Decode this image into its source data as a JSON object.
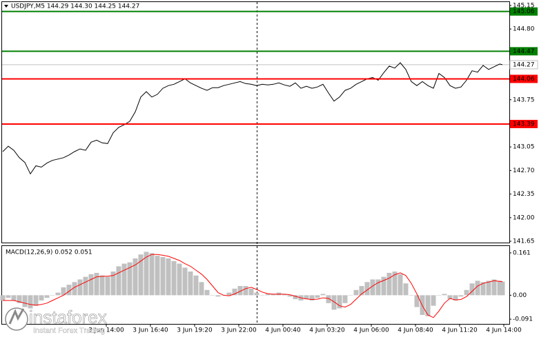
{
  "watermark": {
    "brand": "instaforex",
    "tagline": "Instant Forex Trading"
  },
  "chart_data": [
    {
      "type": "line",
      "title": "USDJPY,M5  144.29 144.30 144.25 144.27",
      "x": [
        0,
        4,
        8,
        12,
        16,
        20,
        24,
        28,
        32,
        36,
        40,
        44,
        48,
        52,
        56,
        60,
        64,
        68,
        72,
        76,
        80,
        84,
        88,
        92,
        96,
        100,
        104,
        108,
        112,
        116,
        120,
        124,
        128,
        132,
        136,
        140,
        144,
        148,
        152,
        156,
        160,
        164,
        168,
        172,
        176,
        180,
        184,
        188,
        192,
        196,
        200,
        204,
        208,
        212,
        216,
        220,
        224,
        228,
        232,
        236,
        240,
        244,
        248,
        252,
        256,
        260,
        264,
        268,
        272,
        276,
        280,
        284,
        288,
        292,
        296,
        300,
        304,
        308,
        312,
        316,
        320,
        324,
        328,
        332,
        336,
        340,
        344,
        348,
        352,
        356,
        360,
        362
      ],
      "series": [
        {
          "color": "#000000",
          "values": [
            142.98,
            143.06,
            143.0,
            142.89,
            142.82,
            142.65,
            142.77,
            142.75,
            142.81,
            142.85,
            142.87,
            142.89,
            142.93,
            142.98,
            143.02,
            143.0,
            143.12,
            143.15,
            143.11,
            143.1,
            143.26,
            143.34,
            143.38,
            143.43,
            143.57,
            143.79,
            143.87,
            143.79,
            143.83,
            143.92,
            143.96,
            143.98,
            144.02,
            144.06,
            144.0,
            143.96,
            143.92,
            143.89,
            143.93,
            143.93,
            143.96,
            143.98,
            144.0,
            144.02,
            143.99,
            143.98,
            143.96,
            143.98,
            143.97,
            143.98,
            144.0,
            143.97,
            143.95,
            144.0,
            143.92,
            143.95,
            143.92,
            143.94,
            143.98,
            143.85,
            143.73,
            143.79,
            143.89,
            143.92,
            143.98,
            144.02,
            144.06,
            144.08,
            144.04,
            144.15,
            144.25,
            144.22,
            144.3,
            144.2,
            144.02,
            143.96,
            144.02,
            143.96,
            143.92,
            144.14,
            144.08,
            143.96,
            143.92,
            143.94,
            144.04,
            144.18,
            144.16,
            144.26,
            144.2,
            144.24,
            144.28,
            144.27
          ]
        }
      ],
      "xlim": [
        -1,
        367
      ],
      "ylim": [
        141.63,
        145.2
      ],
      "yticks": [
        145.15,
        {
          "value": 144.8,
          "label": "144.80"
        },
        143.75,
        143.05,
        {
          "value": 142.7,
          "label": "142.70"
        },
        142.35,
        {
          "value": 142,
          "label": "142.00"
        },
        141.65
      ],
      "levels": [
        {
          "value": 145.06,
          "color": "#008000",
          "label_text_color": "#000000"
        },
        {
          "value": 144.47,
          "color": "#008000",
          "label_text_color": "#000000"
        },
        {
          "value": 144.06,
          "color": "#ff0000",
          "label_text_color": "#ffffff"
        },
        {
          "value": 143.39,
          "color": "#ff0000",
          "label_text_color": "#ffffff"
        }
      ],
      "current": {
        "value": 144.27,
        "color": "#c0c0c0"
      }
    },
    {
      "type": "macd",
      "title": "MACD(12,26,9) 0.052 0.051",
      "x": [
        0,
        4,
        8,
        12,
        16,
        20,
        24,
        28,
        32,
        36,
        40,
        44,
        48,
        52,
        56,
        60,
        64,
        68,
        72,
        76,
        80,
        84,
        88,
        92,
        96,
        100,
        104,
        108,
        112,
        116,
        120,
        124,
        128,
        132,
        136,
        140,
        144,
        148,
        152,
        156,
        160,
        164,
        168,
        172,
        176,
        180,
        184,
        188,
        192,
        196,
        200,
        204,
        208,
        212,
        216,
        220,
        224,
        228,
        232,
        236,
        240,
        244,
        248,
        252,
        256,
        260,
        264,
        268,
        272,
        276,
        280,
        284,
        288,
        292,
        296,
        300,
        304,
        308,
        312,
        316,
        320,
        324,
        328,
        332,
        336,
        340,
        344,
        348,
        352,
        356,
        360,
        362
      ],
      "series": [
        {
          "kind": "bar",
          "color": "#c0c0c0",
          "values": [
            -0.02,
            -0.01,
            -0.02,
            -0.03,
            -0.045,
            -0.05,
            -0.04,
            -0.02,
            -0.01,
            0,
            0.01,
            0.03,
            0.04,
            0.05,
            0.06,
            0.07,
            0.08,
            0.085,
            0.075,
            0.07,
            0.09,
            0.11,
            0.12,
            0.125,
            0.14,
            0.155,
            0.165,
            0.16,
            0.15,
            0.145,
            0.14,
            0.13,
            0.12,
            0.105,
            0.09,
            0.075,
            0.05,
            0.02,
            0,
            -0.005,
            0,
            0.01,
            0.025,
            0.035,
            0.035,
            0.025,
            0.01,
            0,
            0.005,
            0.005,
            0.01,
            0.005,
            -0.005,
            -0.015,
            -0.02,
            -0.015,
            -0.02,
            -0.01,
            0.005,
            -0.03,
            -0.055,
            -0.05,
            -0.03,
            0,
            0.02,
            0.035,
            0.05,
            0.06,
            0.06,
            0.07,
            0.085,
            0.09,
            0.08,
            0.045,
            0,
            -0.045,
            -0.075,
            -0.08,
            -0.04,
            0,
            0.005,
            -0.015,
            -0.02,
            -0.005,
            0.02,
            0.045,
            0.055,
            0.05,
            0.055,
            0.06,
            0.055,
            0.052
          ]
        },
        {
          "kind": "line",
          "color": "#ff0000",
          "values": [
            -0.02,
            -0.02,
            -0.02,
            -0.025,
            -0.03,
            -0.035,
            -0.038,
            -0.035,
            -0.03,
            -0.02,
            -0.01,
            0,
            0.015,
            0.03,
            0.04,
            0.05,
            0.06,
            0.07,
            0.072,
            0.072,
            0.075,
            0.085,
            0.095,
            0.105,
            0.115,
            0.13,
            0.145,
            0.155,
            0.155,
            0.152,
            0.148,
            0.14,
            0.132,
            0.12,
            0.11,
            0.095,
            0.08,
            0.06,
            0.035,
            0.01,
            0,
            -0.002,
            0.005,
            0.015,
            0.025,
            0.03,
            0.022,
            0.012,
            0.006,
            0.004,
            0.004,
            0.004,
            0.002,
            -0.004,
            -0.01,
            -0.014,
            -0.016,
            -0.015,
            -0.01,
            -0.012,
            -0.025,
            -0.04,
            -0.045,
            -0.035,
            -0.015,
            0.005,
            0.02,
            0.035,
            0.048,
            0.056,
            0.065,
            0.078,
            0.085,
            0.075,
            0.045,
            0.005,
            -0.04,
            -0.075,
            -0.085,
            -0.06,
            -0.03,
            -0.012,
            -0.018,
            -0.016,
            -0.005,
            0.015,
            0.035,
            0.045,
            0.05,
            0.055,
            0.053,
            0.051
          ]
        }
      ],
      "xlim": [
        -1,
        367
      ],
      "ylim": [
        -0.109,
        0.187
      ],
      "yticks": [
        0.161,
        {
          "value": 0,
          "label": "0.00"
        },
        -0.091
      ],
      "xticks": [
        {
          "value": 75,
          "label": "3 Jun 14:00"
        },
        {
          "value": 107,
          "label": "3 Jun 16:40"
        },
        {
          "value": 139,
          "label": "3 Jun 19:20"
        },
        {
          "value": 171,
          "label": "3 Jun 22:00"
        },
        {
          "value": 203,
          "label": "4 Jun 00:40"
        },
        {
          "value": 235,
          "label": "4 Jun 03:20"
        },
        {
          "value": 267,
          "label": "4 Jun 06:00"
        },
        {
          "value": 299,
          "label": "4 Jun 08:40"
        },
        {
          "value": 331,
          "label": "4 Jun 11:20"
        },
        {
          "value": 363,
          "label": "4 Jun 14:00"
        }
      ]
    }
  ]
}
